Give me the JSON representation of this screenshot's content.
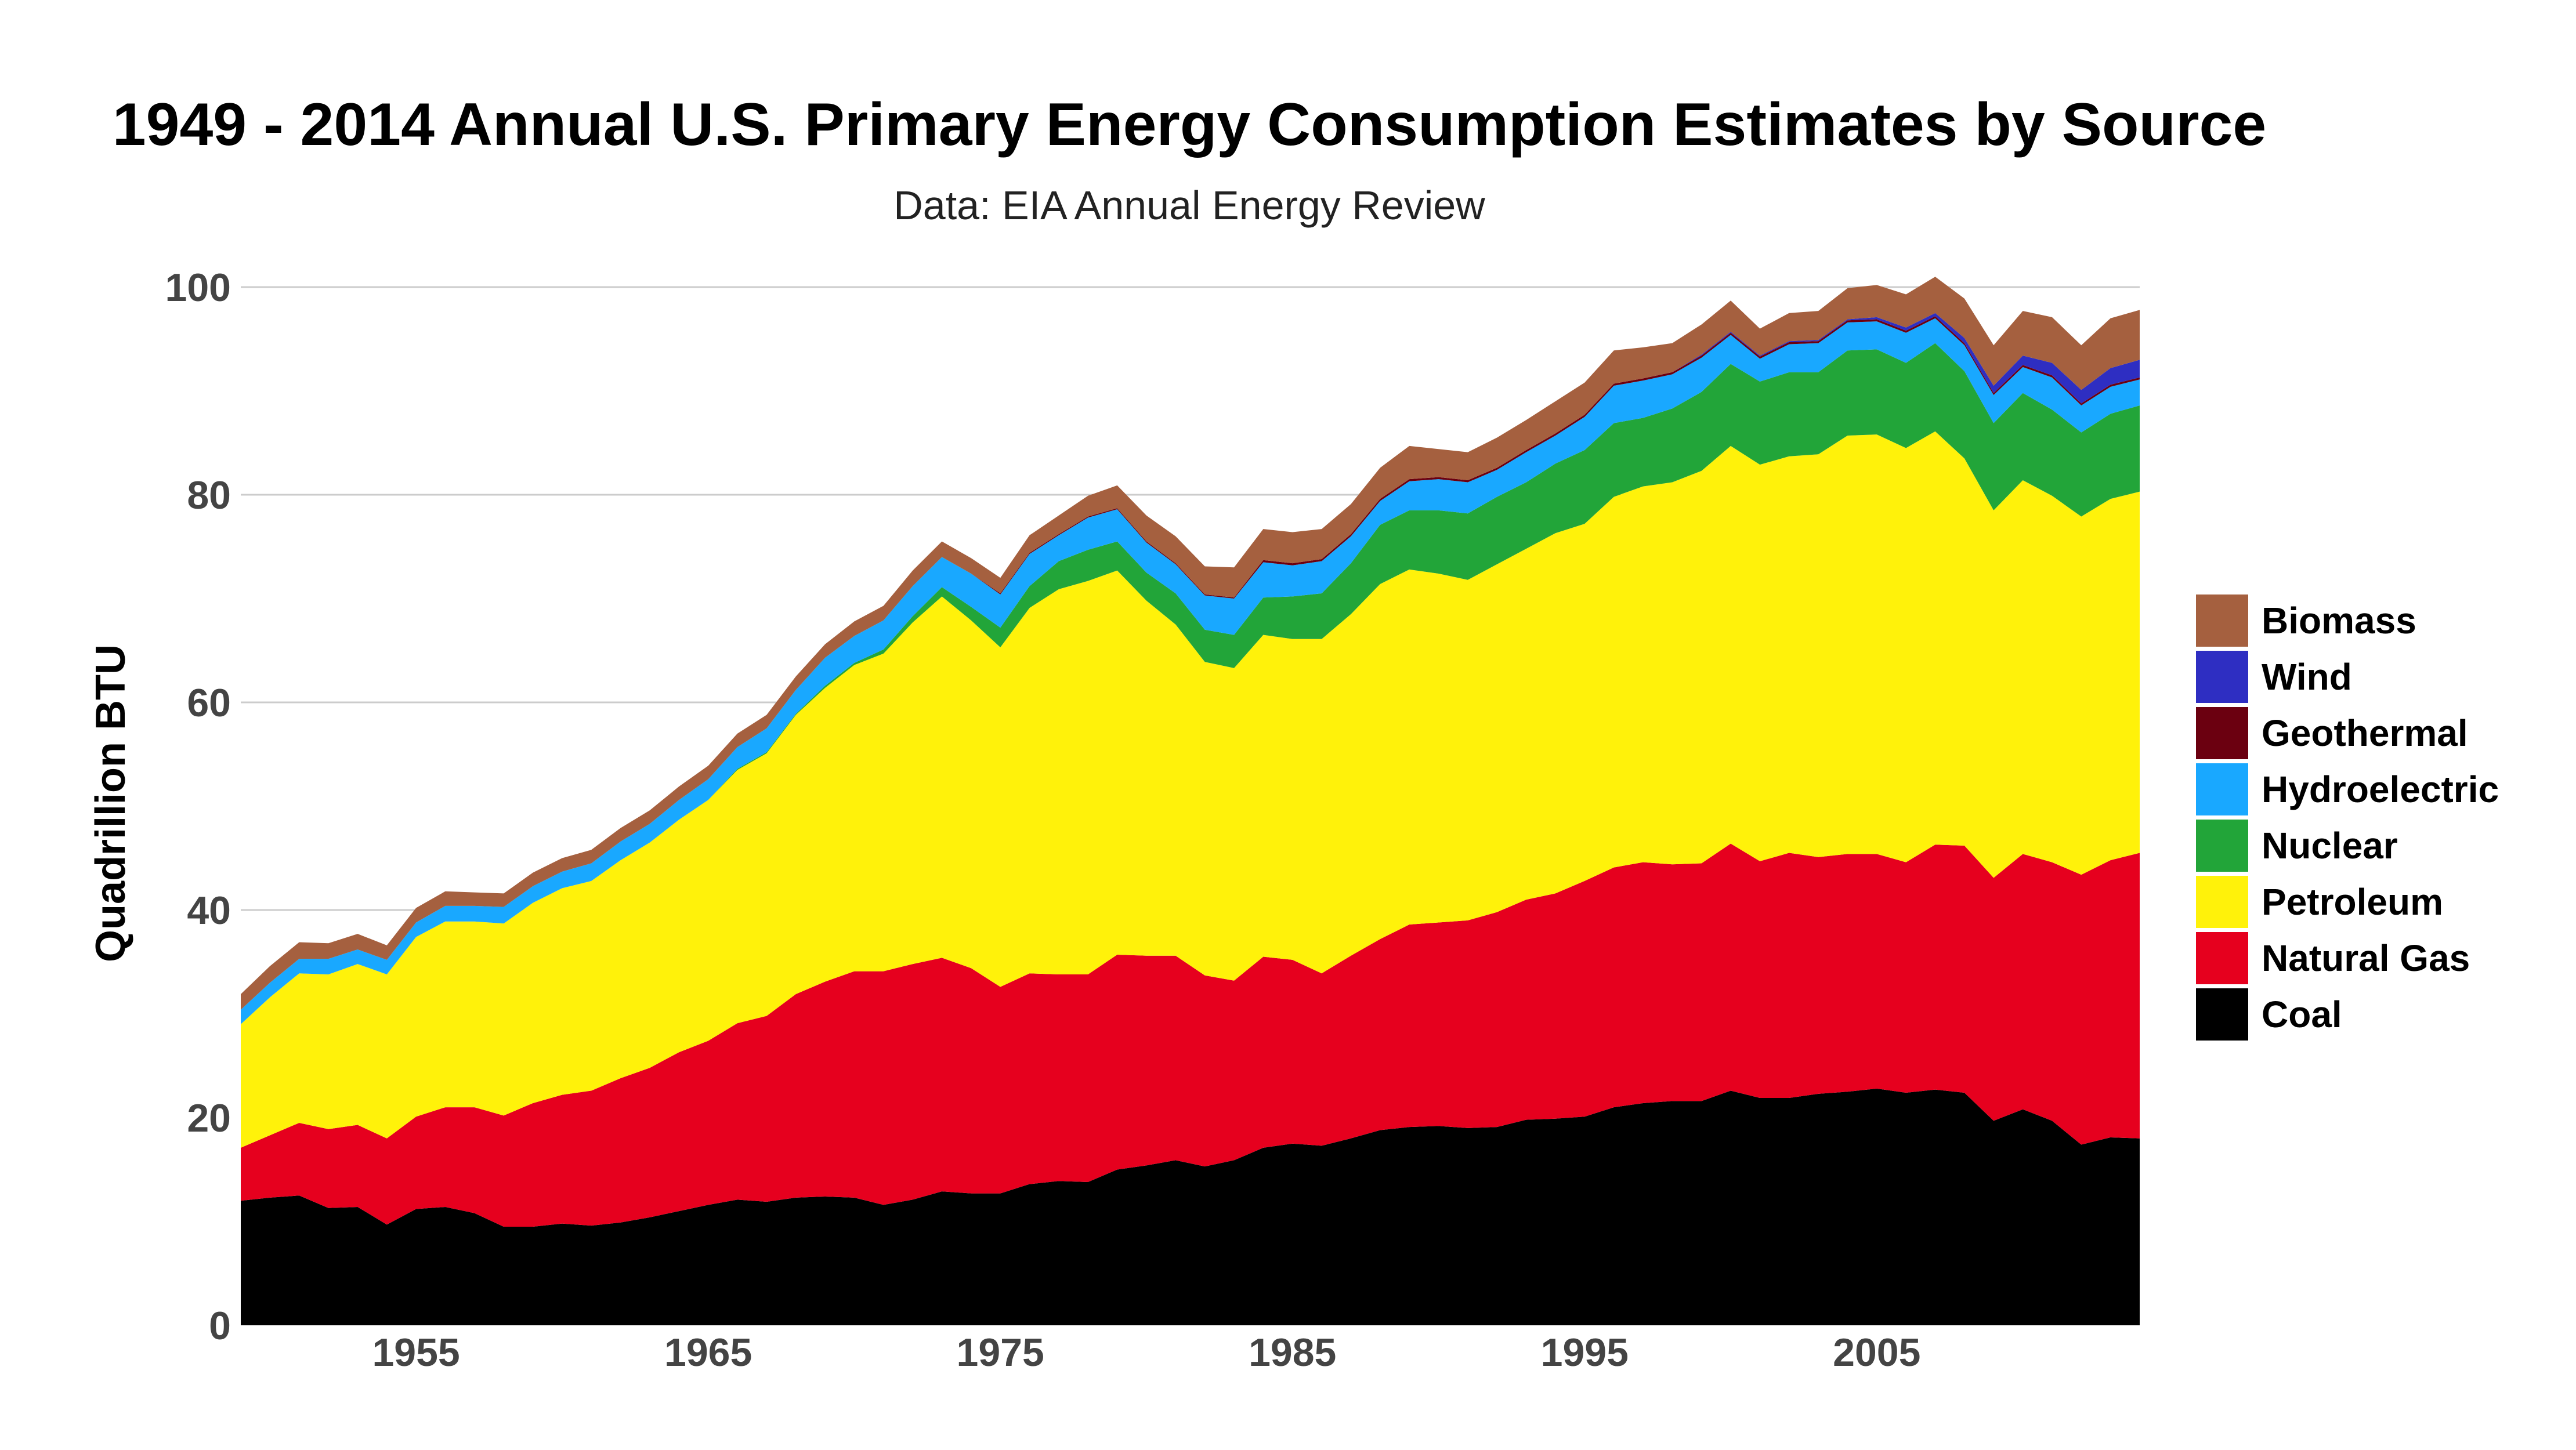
{
  "chart_data": {
    "type": "area",
    "stacked": true,
    "title": "1949 - 2014 Annual U.S. Primary Energy Consumption Estimates by Source",
    "subtitle": "Data: EIA Annual Energy Review",
    "ylabel": "Quadrillion BTU",
    "xlabel": "",
    "xlim": [
      1949,
      2014
    ],
    "ylim": [
      0,
      100
    ],
    "x_ticks": [
      1955,
      1965,
      1975,
      1985,
      1995,
      2005
    ],
    "y_ticks": [
      0,
      20,
      40,
      60,
      80,
      100
    ],
    "grid": true,
    "legend_position": "right",
    "legend_order": [
      "Biomass",
      "Wind",
      "Geothermal",
      "Hydroelectric",
      "Nuclear",
      "Petroleum",
      "Natural Gas",
      "Coal"
    ],
    "x": [
      1949,
      1950,
      1951,
      1952,
      1953,
      1954,
      1955,
      1956,
      1957,
      1958,
      1959,
      1960,
      1961,
      1962,
      1963,
      1964,
      1965,
      1966,
      1967,
      1968,
      1969,
      1970,
      1971,
      1972,
      1973,
      1974,
      1975,
      1976,
      1977,
      1978,
      1979,
      1980,
      1981,
      1982,
      1983,
      1984,
      1985,
      1986,
      1987,
      1988,
      1989,
      1990,
      1991,
      1992,
      1993,
      1994,
      1995,
      1996,
      1997,
      1998,
      1999,
      2000,
      2001,
      2002,
      2003,
      2004,
      2005,
      2006,
      2007,
      2008,
      2009,
      2010,
      2011,
      2012,
      2013,
      2014
    ],
    "series": [
      {
        "name": "Coal",
        "color": "#000000",
        "values": [
          12.0,
          12.3,
          12.5,
          11.3,
          11.4,
          9.7,
          11.2,
          11.4,
          10.8,
          9.5,
          9.5,
          9.8,
          9.6,
          9.9,
          10.4,
          11.0,
          11.6,
          12.1,
          11.9,
          12.3,
          12.4,
          12.3,
          11.6,
          12.1,
          12.9,
          12.7,
          12.7,
          13.6,
          13.9,
          13.8,
          15.0,
          15.4,
          15.9,
          15.3,
          15.9,
          17.1,
          17.5,
          17.3,
          18.0,
          18.8,
          19.1,
          19.2,
          19.0,
          19.1,
          19.8,
          19.9,
          20.1,
          21.0,
          21.4,
          21.6,
          21.6,
          22.6,
          21.9,
          21.9,
          22.3,
          22.5,
          22.8,
          22.4,
          22.7,
          22.4,
          19.7,
          20.8,
          19.7,
          17.4,
          18.1,
          18.0
        ]
      },
      {
        "name": "Natural Gas",
        "color": "#e6001e",
        "values": [
          5.1,
          6.0,
          7.0,
          7.6,
          7.9,
          8.3,
          8.9,
          9.6,
          10.2,
          10.7,
          11.9,
          12.4,
          13.0,
          13.9,
          14.4,
          15.3,
          15.8,
          17.0,
          17.9,
          19.6,
          20.7,
          21.8,
          22.5,
          22.7,
          22.5,
          21.7,
          19.9,
          20.3,
          19.9,
          20.0,
          20.7,
          20.2,
          19.7,
          18.4,
          17.3,
          18.4,
          17.7,
          16.6,
          17.6,
          18.4,
          19.5,
          19.6,
          20.0,
          20.7,
          21.2,
          21.7,
          22.7,
          23.1,
          23.2,
          22.8,
          22.9,
          23.8,
          22.8,
          23.6,
          22.8,
          22.9,
          22.6,
          22.2,
          23.6,
          23.8,
          23.4,
          24.6,
          24.9,
          26.0,
          26.7,
          27.5
        ]
      },
      {
        "name": "Petroleum",
        "color": "#fff20a",
        "values": [
          11.9,
          13.3,
          14.4,
          14.9,
          15.5,
          15.8,
          17.3,
          17.9,
          17.9,
          18.5,
          19.3,
          19.9,
          20.2,
          21.0,
          21.7,
          22.4,
          23.2,
          24.4,
          25.3,
          26.9,
          28.3,
          29.5,
          30.6,
          32.9,
          34.8,
          33.5,
          32.7,
          35.2,
          37.1,
          37.9,
          37.0,
          34.2,
          31.9,
          30.2,
          30.1,
          31.0,
          30.9,
          32.2,
          32.9,
          34.2,
          34.2,
          33.6,
          32.8,
          33.5,
          33.8,
          34.7,
          34.4,
          35.7,
          36.2,
          36.8,
          37.8,
          38.3,
          38.2,
          38.2,
          38.8,
          40.3,
          40.4,
          39.9,
          39.8,
          37.3,
          35.4,
          36.0,
          35.3,
          34.5,
          34.8,
          34.8
        ]
      },
      {
        "name": "Nuclear",
        "color": "#22a539",
        "values": [
          0,
          0,
          0,
          0,
          0,
          0,
          0,
          0,
          0,
          0,
          0,
          0,
          0,
          0,
          0,
          0,
          0,
          0.1,
          0.1,
          0.1,
          0.2,
          0.2,
          0.4,
          0.6,
          0.9,
          1.3,
          1.9,
          2.1,
          2.7,
          3.0,
          2.8,
          2.7,
          3.0,
          3.1,
          3.2,
          3.6,
          4.1,
          4.4,
          4.9,
          5.7,
          5.7,
          6.1,
          6.4,
          6.5,
          6.4,
          6.7,
          7.1,
          7.1,
          6.6,
          7.1,
          7.6,
          7.9,
          8.0,
          8.1,
          7.9,
          8.2,
          8.2,
          8.2,
          8.5,
          8.4,
          8.4,
          8.4,
          8.3,
          8.1,
          8.2,
          8.3
        ]
      },
      {
        "name": "Hydroelectric",
        "color": "#19a8ff",
        "values": [
          1.4,
          1.4,
          1.4,
          1.5,
          1.4,
          1.4,
          1.4,
          1.5,
          1.5,
          1.6,
          1.6,
          1.6,
          1.7,
          1.8,
          1.8,
          1.9,
          2.0,
          2.1,
          2.3,
          2.3,
          2.7,
          2.6,
          2.8,
          2.9,
          2.9,
          3.2,
          3.2,
          3.1,
          2.5,
          3.1,
          3.1,
          2.9,
          2.8,
          3.3,
          3.5,
          3.4,
          3.0,
          3.1,
          2.6,
          2.3,
          2.8,
          3.0,
          3.0,
          2.6,
          2.9,
          2.7,
          3.2,
          3.6,
          3.6,
          3.3,
          3.3,
          2.8,
          2.2,
          2.7,
          2.8,
          2.7,
          2.7,
          2.9,
          2.4,
          2.5,
          2.7,
          2.5,
          3.1,
          2.6,
          2.6,
          2.5
        ]
      },
      {
        "name": "Geothermal",
        "color": "#6b0010",
        "values": [
          0,
          0,
          0,
          0,
          0,
          0,
          0,
          0,
          0,
          0,
          0,
          0,
          0,
          0,
          0,
          0,
          0,
          0,
          0,
          0,
          0,
          0,
          0,
          0,
          0,
          0,
          0.1,
          0.1,
          0.1,
          0.1,
          0.1,
          0.1,
          0.1,
          0.1,
          0.1,
          0.2,
          0.2,
          0.2,
          0.2,
          0.2,
          0.2,
          0.2,
          0.2,
          0.2,
          0.2,
          0.2,
          0.2,
          0.2,
          0.2,
          0.2,
          0.2,
          0.2,
          0.2,
          0.2,
          0.2,
          0.2,
          0.2,
          0.2,
          0.2,
          0.2,
          0.2,
          0.2,
          0.2,
          0.2,
          0.2,
          0.2
        ]
      },
      {
        "name": "Wind",
        "color": "#2e2ec2",
        "values": [
          0,
          0,
          0,
          0,
          0,
          0,
          0,
          0,
          0,
          0,
          0,
          0,
          0,
          0,
          0,
          0,
          0,
          0,
          0,
          0,
          0,
          0,
          0,
          0,
          0,
          0,
          0,
          0,
          0,
          0,
          0,
          0,
          0,
          0,
          0,
          0,
          0,
          0,
          0,
          0,
          0,
          0,
          0,
          0,
          0,
          0,
          0,
          0,
          0,
          0,
          0.1,
          0.1,
          0.1,
          0.1,
          0.1,
          0.1,
          0.2,
          0.3,
          0.3,
          0.5,
          0.7,
          0.9,
          1.2,
          1.3,
          1.6,
          1.7
        ]
      },
      {
        "name": "Biomass",
        "color": "#a5603f",
        "values": [
          1.5,
          1.6,
          1.6,
          1.5,
          1.5,
          1.4,
          1.4,
          1.4,
          1.3,
          1.3,
          1.3,
          1.3,
          1.3,
          1.3,
          1.3,
          1.3,
          1.3,
          1.3,
          1.3,
          1.3,
          1.3,
          1.4,
          1.4,
          1.5,
          1.5,
          1.5,
          1.5,
          1.7,
          1.8,
          2.0,
          2.2,
          2.5,
          2.6,
          2.7,
          2.9,
          3.0,
          3.0,
          2.9,
          2.9,
          3.0,
          3.2,
          2.7,
          2.7,
          2.9,
          2.9,
          3.1,
          3.1,
          3.2,
          3.0,
          2.8,
          2.9,
          3.0,
          2.6,
          2.7,
          2.8,
          3.0,
          3.1,
          3.2,
          3.5,
          3.8,
          3.9,
          4.3,
          4.4,
          4.3,
          4.8,
          4.8
        ]
      }
    ]
  }
}
